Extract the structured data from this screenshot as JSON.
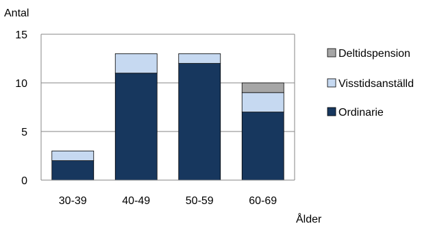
{
  "chart_data": {
    "type": "bar",
    "stacked": true,
    "title": "",
    "ylabel": "Antal",
    "xlabel": "Ålder",
    "categories": [
      "30-39",
      "40-49",
      "50-59",
      "60-69"
    ],
    "ylim": [
      0,
      15
    ],
    "yticks": [
      0,
      5,
      10,
      15
    ],
    "grid": true,
    "legend_position": "right",
    "series": [
      {
        "name": "Ordinarie",
        "values": [
          2,
          11,
          12,
          7
        ],
        "color": "#17375e"
      },
      {
        "name": "Visstidsanställd",
        "values": [
          1,
          2,
          1,
          2
        ],
        "color": "#c6d9f1"
      },
      {
        "name": "Deltidspension",
        "values": [
          0,
          0,
          0,
          1
        ],
        "color": "#a6a6a6"
      }
    ]
  }
}
